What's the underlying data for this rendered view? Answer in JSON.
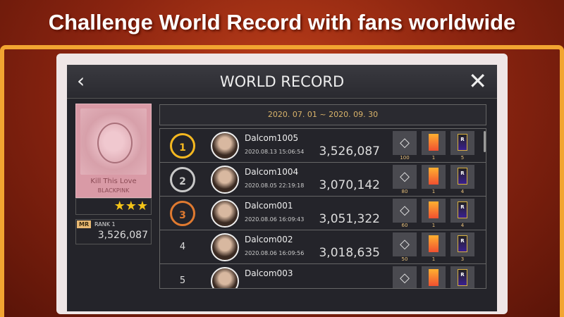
{
  "headline": "Challenge World Record with fans worldwide",
  "header": {
    "title": "WORLD RECORD",
    "back_icon": "chevron-left-icon",
    "close_icon": "close-icon"
  },
  "song": {
    "title": "Kill This Love",
    "artist": "BLACKPINK",
    "stars": "★★★",
    "star_count": 3
  },
  "my_record": {
    "badge": "MR",
    "rank_label": "RANK",
    "rank": "1",
    "score": "3,526,087"
  },
  "period": "2020. 07. 01 ~ 2020. 09. 30",
  "colors": {
    "gold": "#f5b820",
    "silver": "#c8c8c8",
    "bronze": "#e07a30",
    "accent": "#d9b36a"
  },
  "rows": [
    {
      "rank": "1",
      "name": "Dalcom1005",
      "time": "2020.08.13 15:06:54",
      "score": "3,526,087",
      "rewards": [
        "100",
        "1",
        "5"
      ]
    },
    {
      "rank": "2",
      "name": "Dalcom1004",
      "time": "2020.08.05 22:19:18",
      "score": "3,070,142",
      "rewards": [
        "80",
        "1",
        "4"
      ]
    },
    {
      "rank": "3",
      "name": "Dalcom001",
      "time": "2020.08.06 16:09:43",
      "score": "3,051,322",
      "rewards": [
        "60",
        "1",
        "4"
      ]
    },
    {
      "rank": "4",
      "name": "Dalcom002",
      "time": "2020.08.06 16:09:56",
      "score": "3,018,635",
      "rewards": [
        "50",
        "1",
        "3"
      ]
    },
    {
      "rank": "5",
      "name": "Dalcom003",
      "time": "",
      "score": "",
      "rewards": [
        "",
        "",
        ""
      ]
    }
  ]
}
